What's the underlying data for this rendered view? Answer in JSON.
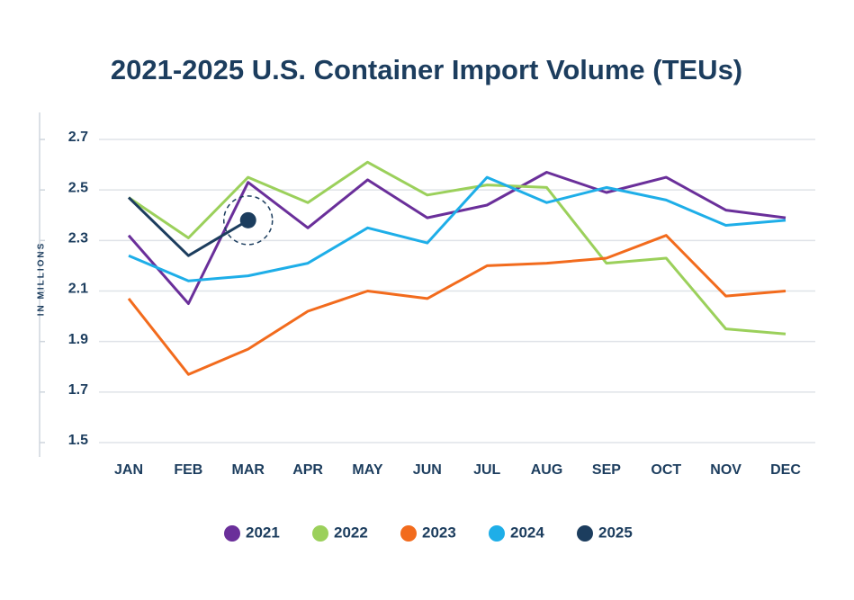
{
  "chart_data": {
    "type": "line",
    "title": "2021-2025 U.S. Container Import Volume (TEUs)",
    "y_label": "IN MILLIONS",
    "categories": [
      "JAN",
      "FEB",
      "MAR",
      "APR",
      "MAY",
      "JUN",
      "JUL",
      "AUG",
      "SEP",
      "OCT",
      "NOV",
      "DEC"
    ],
    "series": [
      {
        "name": "2021",
        "color": "#6a2f9a",
        "values": [
          2.32,
          2.05,
          2.53,
          2.35,
          2.54,
          2.39,
          2.44,
          2.57,
          2.49,
          2.55,
          2.42,
          2.39
        ]
      },
      {
        "name": "2022",
        "color": "#9bd05b",
        "values": [
          2.47,
          2.31,
          2.55,
          2.45,
          2.61,
          2.48,
          2.52,
          2.51,
          2.21,
          2.23,
          1.95,
          1.93
        ]
      },
      {
        "name": "2023",
        "color": "#f26b1d",
        "values": [
          2.07,
          1.77,
          1.87,
          2.02,
          2.1,
          2.07,
          2.2,
          2.21,
          2.23,
          2.32,
          2.08,
          2.1
        ]
      },
      {
        "name": "2024",
        "color": "#1eaee8",
        "values": [
          2.24,
          2.14,
          2.16,
          2.21,
          2.35,
          2.29,
          2.55,
          2.45,
          2.51,
          2.46,
          2.36,
          2.38
        ]
      },
      {
        "name": "2025",
        "color": "#1c3d5e",
        "values": [
          2.47,
          2.24,
          2.38,
          null,
          null,
          null,
          null,
          null,
          null,
          null,
          null,
          null
        ]
      }
    ],
    "ylim": [
      1.5,
      2.7
    ],
    "yticks": [
      1.5,
      1.7,
      1.9,
      2.1,
      2.3,
      2.5,
      2.7
    ],
    "grid": true,
    "legend": "bottom"
  }
}
